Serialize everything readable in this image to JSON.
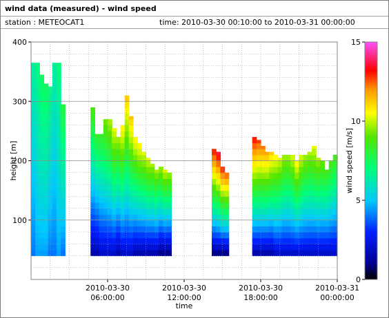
{
  "header": {
    "title": "wind data (measured) - wind speed",
    "station": "station : METEOCAT1",
    "time_range": "time: 2010-03-30 00:10:00 to 2010-03-31 00:00:00"
  },
  "chart_data": {
    "type": "heatmap",
    "xlabel": "time",
    "ylabel": "height [m]",
    "colorbar_label": "wind speed [m/s]",
    "x_range_hours": [
      0,
      24
    ],
    "ylim": [
      0,
      400
    ],
    "clim": [
      0,
      15
    ],
    "x_ticks": [
      {
        "hour": 6,
        "line1": "2010-03-30",
        "line2": "06:00:00"
      },
      {
        "hour": 12,
        "line1": "2010-03-30",
        "line2": "12:00:00"
      },
      {
        "hour": 18,
        "line1": "2010-03-30",
        "line2": "18:00:00"
      },
      {
        "hour": 24,
        "line1": "2010-03-31",
        "line2": "00:00:00"
      }
    ],
    "y_ticks": [
      100,
      200,
      300,
      400
    ],
    "colorbar_ticks": [
      0,
      5,
      10,
      15
    ],
    "grid": true,
    "profile_hours": [
      0.17,
      0.5,
      0.83,
      1.17,
      1.5,
      1.83,
      2.17,
      2.5,
      4.83,
      5.17,
      5.5,
      5.83,
      6.17,
      6.5,
      6.83,
      7.17,
      7.5,
      7.83,
      8.17,
      8.5,
      8.83,
      9.17,
      9.5,
      9.83,
      10.17,
      10.5,
      10.83,
      14.33,
      14.67,
      15.0,
      15.33,
      17.5,
      17.83,
      18.17,
      18.5,
      18.83,
      19.17,
      19.5,
      19.83,
      20.17,
      20.5,
      20.83,
      21.17,
      21.5,
      21.83,
      22.17,
      22.5,
      22.83,
      23.17,
      23.5,
      23.83
    ],
    "profile_bottom_m": [
      40,
      40,
      40,
      40,
      40,
      40,
      40,
      40,
      40,
      40,
      40,
      40,
      40,
      40,
      40,
      40,
      40,
      40,
      40,
      40,
      40,
      40,
      40,
      40,
      40,
      40,
      40,
      40,
      40,
      40,
      40,
      40,
      40,
      40,
      40,
      40,
      40,
      40,
      40,
      40,
      40,
      40,
      40,
      40,
      40,
      40,
      40,
      40,
      40,
      40,
      40
    ],
    "profile_top_m": [
      365,
      365,
      345,
      330,
      325,
      365,
      365,
      295,
      290,
      245,
      245,
      270,
      270,
      255,
      240,
      260,
      310,
      275,
      240,
      230,
      215,
      205,
      195,
      185,
      190,
      185,
      180,
      220,
      215,
      190,
      180,
      240,
      235,
      225,
      215,
      215,
      210,
      205,
      210,
      210,
      210,
      200,
      210,
      210,
      215,
      225,
      205,
      200,
      185,
      200,
      210
    ],
    "speed_low_m_s": [
      4.0,
      4.5,
      4.5,
      4.5,
      4.0,
      4.0,
      4.5,
      4.0,
      1.5,
      1.5,
      2.0,
      2.0,
      2.0,
      2.0,
      1.5,
      2.0,
      2.0,
      2.0,
      1.5,
      1.5,
      1.5,
      1.5,
      1.5,
      1.5,
      1.0,
      1.0,
      1.0,
      1.0,
      1.0,
      1.0,
      1.0,
      1.5,
      1.5,
      1.5,
      1.5,
      1.5,
      2.0,
      2.0,
      2.0,
      2.0,
      2.0,
      2.0,
      2.0,
      2.0,
      2.0,
      2.0,
      2.0,
      2.0,
      2.0,
      2.0,
      2.0
    ],
    "speed_top_m_s": [
      6.5,
      7.0,
      7.5,
      7.5,
      7.0,
      6.5,
      7.0,
      8.0,
      9.0,
      8.5,
      8.5,
      9.5,
      10.0,
      10.5,
      10.0,
      11.0,
      11.5,
      11.5,
      11.0,
      11.0,
      10.5,
      10.5,
      10.0,
      10.0,
      10.0,
      10.5,
      10.0,
      13.5,
      14.0,
      13.5,
      13.0,
      13.5,
      13.0,
      12.5,
      12.0,
      11.5,
      11.0,
      10.5,
      10.0,
      10.0,
      10.5,
      11.0,
      10.5,
      10.0,
      10.0,
      10.5,
      10.0,
      9.5,
      9.0,
      9.0,
      9.0
    ]
  }
}
